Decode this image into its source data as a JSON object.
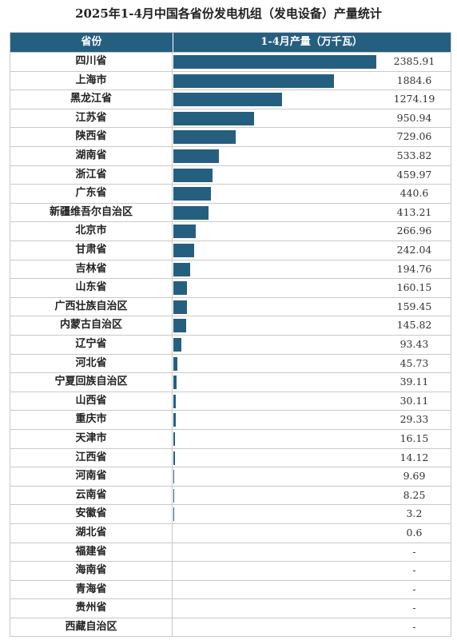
{
  "title": "2025年1-4月中国各省份发电机组（发电设备）产量统计",
  "header": {
    "col1": "省份",
    "col2": "1-4月产量（万千瓦）"
  },
  "colors": {
    "header_bg": "#255f80",
    "bar": "#255f80",
    "grid": "#c9c9c9"
  },
  "chart_data": {
    "type": "bar",
    "orientation": "horizontal",
    "title": "2025年1-4月中国各省份发电机组（发电设备）产量统计",
    "value_label": "1-4月产量（万千瓦）",
    "categories": [
      "四川省",
      "上海市",
      "黑龙江省",
      "江苏省",
      "陕西省",
      "湖南省",
      "浙江省",
      "广东省",
      "新疆维吾尔自治区",
      "北京市",
      "甘肃省",
      "吉林省",
      "山东省",
      "广西壮族自治区",
      "内蒙古自治区",
      "辽宁省",
      "河北省",
      "宁夏回族自治区",
      "山西省",
      "重庆市",
      "天津市",
      "江西省",
      "河南省",
      "云南省",
      "安徽省",
      "湖北省",
      "福建省",
      "海南省",
      "青海省",
      "贵州省",
      "西藏自治区"
    ],
    "values": [
      2385.91,
      1884.6,
      1274.19,
      950.94,
      729.06,
      533.82,
      459.97,
      440.6,
      413.21,
      266.96,
      242.04,
      194.76,
      160.15,
      159.45,
      145.82,
      93.43,
      45.73,
      39.11,
      30.11,
      29.33,
      16.15,
      14.12,
      9.69,
      8.25,
      3.2,
      0.6,
      null,
      null,
      null,
      null,
      null
    ],
    "value_text": [
      "2385.91",
      "1884.6",
      "1274.19",
      "950.94",
      "729.06",
      "533.82",
      "459.97",
      "440.6",
      "413.21",
      "266.96",
      "242.04",
      "194.76",
      "160.15",
      "159.45",
      "145.82",
      "93.43",
      "45.73",
      "39.11",
      "30.11",
      "29.33",
      "16.15",
      "14.12",
      "9.69",
      "8.25",
      "3.2",
      "0.6",
      "-",
      "-",
      "-",
      "-",
      "-"
    ],
    "xlim": [
      0,
      2385.91
    ]
  }
}
